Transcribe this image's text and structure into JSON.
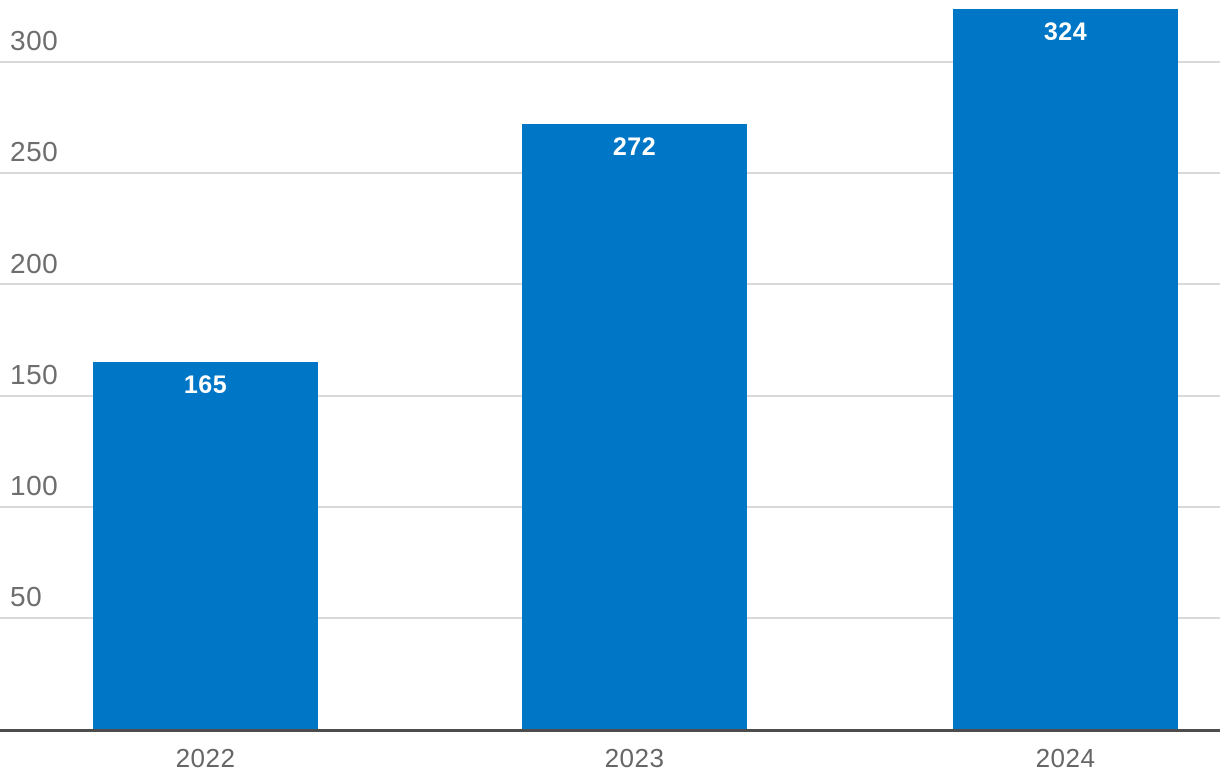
{
  "chart_data": {
    "type": "bar",
    "categories": [
      "2022",
      "2023",
      "2024"
    ],
    "values": [
      165,
      272,
      324
    ],
    "value_labels": [
      "165",
      "272",
      "324"
    ],
    "ytick_labels": [
      "50",
      "100",
      "150",
      "200",
      "250",
      "300"
    ],
    "yticks": [
      50,
      100,
      150,
      200,
      250,
      300
    ],
    "title": "",
    "xlabel": "",
    "ylabel": "",
    "ylim": [
      0,
      328
    ],
    "grid": true,
    "legend": "none",
    "colors": {
      "bar": "#0077C6",
      "bar_value_text": "#FFFFFF",
      "ytick_text": "#6E6E6E",
      "xtick_text": "#666666",
      "gridline": "#D9D9D9",
      "axis_line": "#4D4D4D",
      "background": "#FFFFFF"
    }
  }
}
